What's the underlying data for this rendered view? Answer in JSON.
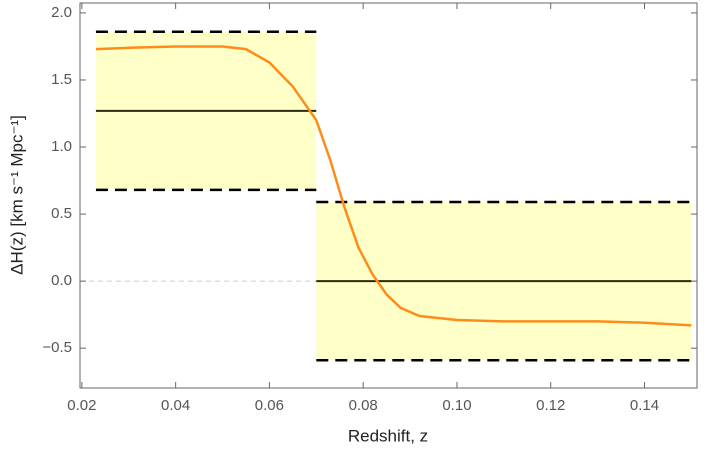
{
  "chart_data": {
    "type": "line",
    "xlabel": "Redshift, z",
    "ylabel": "ΔH(z) [km s⁻¹ Mpc⁻¹]",
    "xlim": [
      0.0196,
      0.1512
    ],
    "ylim": [
      -0.797,
      2.074
    ],
    "xticks": [
      0.02,
      0.04,
      0.06,
      0.08,
      {
        "value": 0.1,
        "label": "0.10"
      },
      0.12,
      0.14
    ],
    "yticks": [
      {
        "value": -0.5,
        "label": "−0.5"
      },
      {
        "value": 0,
        "label": "0.0"
      },
      {
        "value": 0.5,
        "label": "0.5"
      },
      {
        "value": 1,
        "label": "1.0"
      },
      {
        "value": 1.5,
        "label": "1.5"
      },
      {
        "value": 2,
        "label": "2.0"
      }
    ],
    "reference_line": 0,
    "band_color": "#ffffc8",
    "bins": [
      {
        "x": [
          0.023,
          0.07
        ],
        "mean": 1.27,
        "lower": 0.68,
        "upper": 1.86
      },
      {
        "x": [
          0.07,
          0.15
        ],
        "mean": 0,
        "lower": -0.59,
        "upper": 0.59
      }
    ],
    "series": [
      {
        "color": "#ff8c1a",
        "x": [
          0.023,
          0.03,
          0.04,
          0.05,
          0.055,
          0.06,
          0.065,
          0.07,
          0.073,
          0.076,
          0.079,
          0.082,
          0.085,
          0.088,
          0.092,
          0.1,
          0.11,
          0.12,
          0.13,
          0.14,
          0.15
        ],
        "values": [
          1.73,
          1.74,
          1.75,
          1.75,
          1.73,
          1.63,
          1.45,
          1.2,
          0.9,
          0.55,
          0.25,
          0.05,
          -0.1,
          -0.2,
          -0.26,
          -0.29,
          -0.3,
          -0.3,
          -0.3,
          -0.31,
          -0.33
        ]
      }
    ]
  }
}
